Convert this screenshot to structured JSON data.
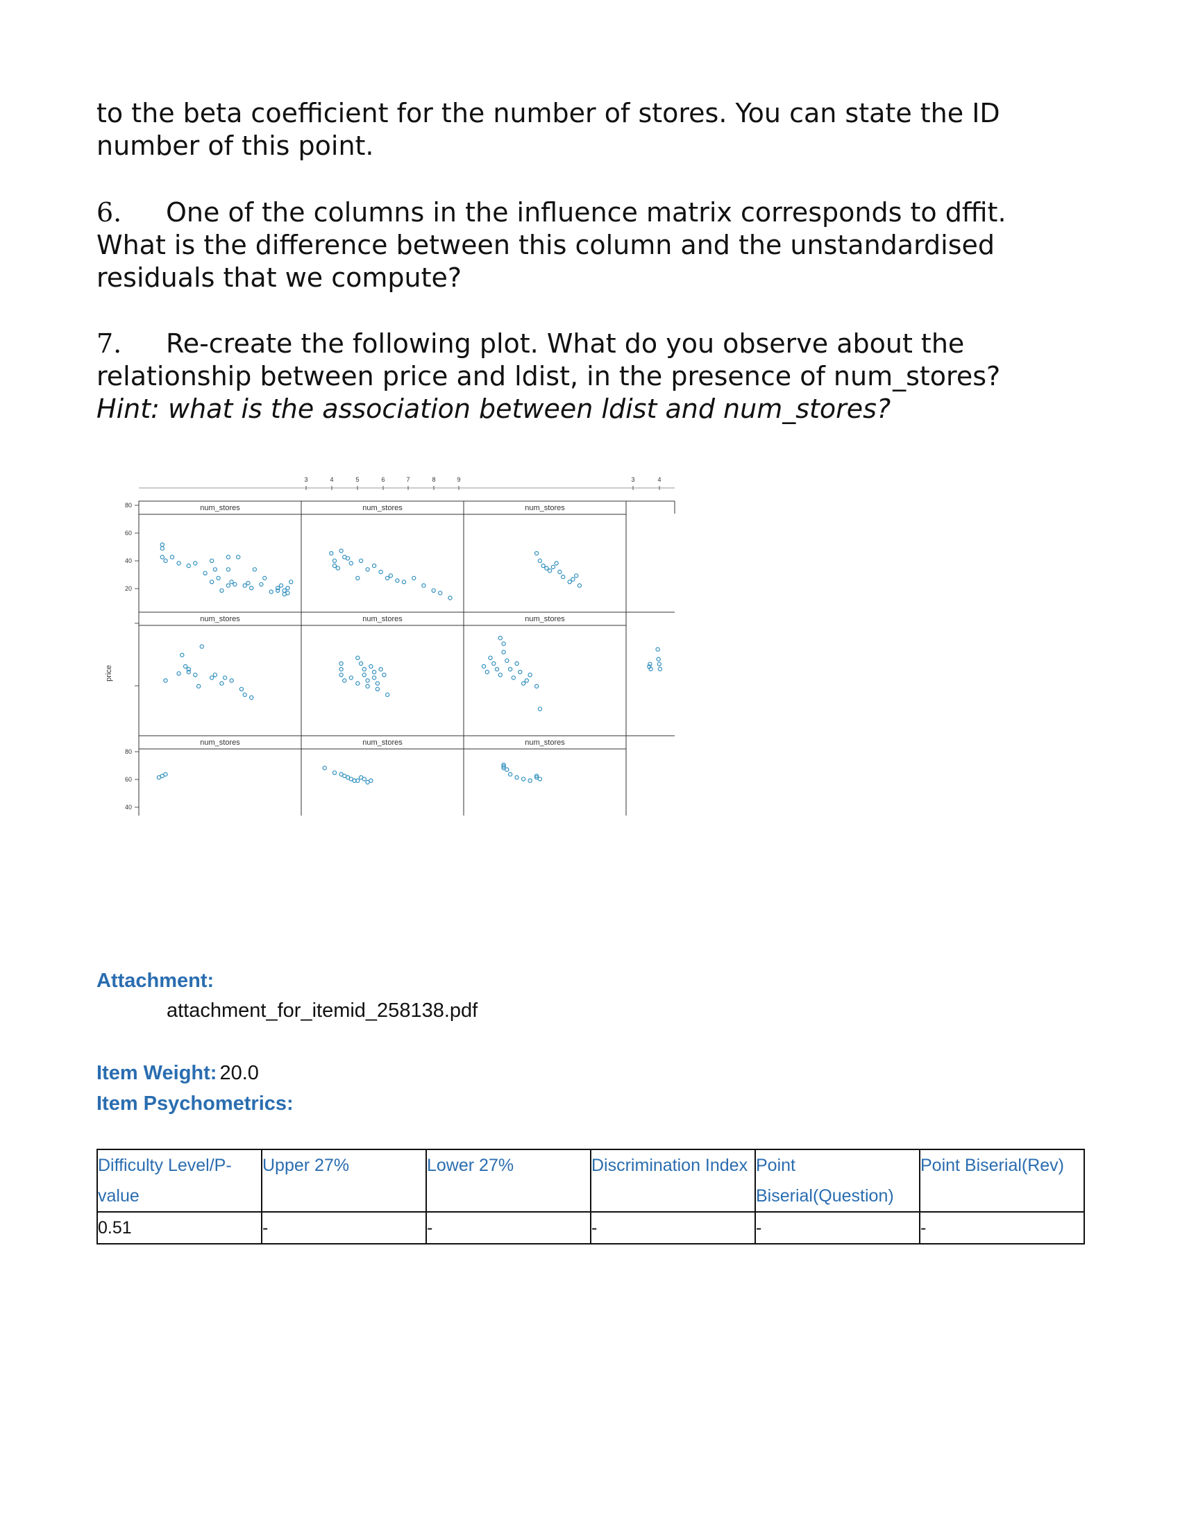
{
  "paragraphs": {
    "cont": "to the beta coefficient for the number of stores. You can state the ID number of this point.",
    "q6_num": "6.",
    "q6_text": "One of the columns in the influence matrix corresponds to dffit. What is the difference between this column and the unstandardised residuals that we compute?",
    "q7_num": "7.",
    "q7_text": "Re-create the following plot. What do you observe about the relationship between price and ldist, in the presence of num_stores?",
    "q7_hint": "Hint: what is the association between ldist and num_stores?"
  },
  "chart_data": {
    "type": "scatter",
    "ylabel": "price",
    "strip_label": "num_stores",
    "left_ticks": [
      "80",
      "60",
      "40",
      "20"
    ],
    "top_ticks": [
      "3",
      "4",
      "5",
      "6",
      "7",
      "8",
      "9"
    ],
    "top_right_ticks": [
      "3",
      "4"
    ],
    "point_color": "#2f8fbf",
    "panels": [
      {
        "label": "num_stores",
        "x": [
          3.5,
          3.5,
          3.5,
          3.6,
          3.8,
          4.0,
          4.3,
          4.5,
          4.8,
          5.0,
          5.0,
          5.1,
          5.2,
          5.3,
          5.5,
          5.5,
          5.5,
          5.6,
          5.7,
          5.8,
          6.0,
          6.1,
          6.2,
          6.3,
          6.5,
          6.6,
          6.8,
          7.0,
          7.0,
          7.1,
          7.2,
          7.2,
          7.3,
          7.3,
          7.4
        ],
        "y": [
          55,
          52,
          45,
          42,
          45,
          40,
          38,
          40,
          32,
          42,
          25,
          35,
          28,
          18,
          35,
          45,
          22,
          25,
          23,
          45,
          22,
          24,
          20,
          35,
          23,
          28,
          17,
          20,
          18,
          22,
          18,
          15,
          16,
          20,
          25
        ]
      },
      {
        "label": "num_stores",
        "x": [
          3.7,
          3.8,
          3.8,
          3.9,
          4.0,
          4.1,
          4.2,
          4.3,
          4.5,
          4.6,
          4.8,
          5.0,
          5.2,
          5.4,
          5.5,
          5.7,
          5.9,
          6.2,
          6.5,
          6.8,
          7.0,
          7.3
        ],
        "y": [
          48,
          38,
          42,
          36,
          50,
          45,
          44,
          40,
          28,
          42,
          35,
          38,
          33,
          28,
          30,
          26,
          25,
          28,
          22,
          18,
          16,
          12
        ]
      },
      {
        "label": "num_stores",
        "x": [
          5.0,
          5.1,
          5.2,
          5.3,
          5.4,
          5.5,
          5.6,
          5.7,
          5.8,
          6.0,
          6.1,
          6.2,
          6.3
        ],
        "y": [
          48,
          42,
          38,
          36,
          34,
          37,
          40,
          33,
          29,
          25,
          27,
          30,
          22
        ]
      },
      {
        "label": "num_stores",
        "x": [
          3.6,
          4.0,
          4.1,
          4.2,
          4.3,
          4.3,
          4.5,
          4.6,
          4.7,
          5.0,
          5.1,
          5.3,
          5.4,
          5.6,
          5.9,
          6.0,
          6.2
        ],
        "y": [
          40,
          45,
          58,
          50,
          48,
          46,
          44,
          36,
          64,
          42,
          44,
          38,
          42,
          40,
          34,
          30,
          28
        ]
      },
      {
        "label": "num_stores",
        "x": [
          4.0,
          4.0,
          4.0,
          4.1,
          4.3,
          4.5,
          4.5,
          4.6,
          4.7,
          4.7,
          4.8,
          4.8,
          4.9,
          5.0,
          5.0,
          5.1,
          5.1,
          5.2,
          5.3,
          5.4
        ],
        "y": [
          52,
          48,
          44,
          40,
          42,
          38,
          56,
          52,
          48,
          44,
          40,
          36,
          50,
          46,
          42,
          38,
          34,
          48,
          44,
          30
        ]
      },
      {
        "label": "num_stores",
        "x": [
          3.4,
          3.5,
          3.6,
          3.7,
          3.8,
          3.9,
          3.9,
          4.0,
          4.0,
          4.1,
          4.2,
          4.3,
          4.4,
          4.5,
          4.6,
          4.7,
          4.8,
          5.0,
          5.1
        ],
        "y": [
          50,
          46,
          56,
          52,
          48,
          44,
          70,
          66,
          60,
          54,
          48,
          42,
          52,
          46,
          38,
          40,
          44,
          36,
          20
        ]
      },
      {
        "label": "num_stores",
        "x": [
          3.4,
          3.5,
          3.6
        ],
        "y": [
          46,
          48,
          50
        ]
      },
      {
        "label": "num_stores",
        "x": [
          3.5,
          3.8,
          4.0,
          4.1,
          4.2,
          4.3,
          4.4,
          4.5,
          4.6,
          4.7,
          4.8,
          4.9
        ],
        "y": [
          58,
          52,
          50,
          48,
          46,
          44,
          42,
          42,
          46,
          44,
          40,
          42
        ]
      },
      {
        "label": "num_stores",
        "x": [
          4.0,
          4.0,
          4.0,
          4.1,
          4.2,
          4.4,
          4.6,
          4.8,
          5.0,
          5.0,
          5.1
        ],
        "y": [
          62,
          60,
          58,
          56,
          50,
          46,
          44,
          42,
          48,
          46,
          44
        ]
      },
      {
        "label": "num_stores",
        "x": [
          5.1,
          5.2,
          5.3,
          6.2,
          6.3,
          6.4,
          6.5
        ],
        "y": [
          46,
          48,
          44,
          60,
          52,
          48,
          44
        ]
      }
    ]
  },
  "attachment": {
    "label": "Attachment:",
    "filename": "attachment_for_itemid_258138.pdf"
  },
  "item": {
    "weight_label": "Item Weight:",
    "weight_value": "20.0",
    "psychometrics_label": "Item Psychometrics:"
  },
  "table": {
    "headers": [
      "Difficulty Level/P-value",
      "Upper 27%",
      "Lower 27%",
      "Discrimination Index",
      "Point Biserial(Question)",
      "Point Biserial(Rev)"
    ],
    "row": [
      "0.51",
      "-",
      "-",
      "-",
      "-",
      "-"
    ]
  }
}
